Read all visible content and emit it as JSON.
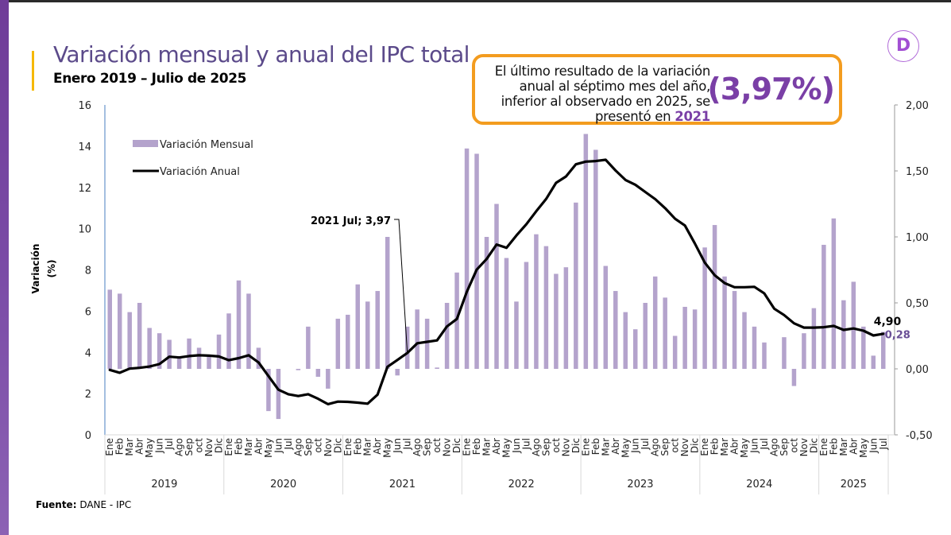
{
  "header": {
    "title": "Variación mensual y anual del IPC total",
    "subtitle": "Enero 2019 – Julio de 2025"
  },
  "callout": {
    "line1": "El último resultado de la variación",
    "line2": "anual al séptimo mes del año,",
    "line3": "inferior al observado en 2025, se",
    "line4_prefix": "presentó en ",
    "year": "2021",
    "value": "(3,97%)"
  },
  "logo": {
    "icon": "d-logo-icon",
    "glyph": "D"
  },
  "footer": {
    "source_label": "Fuente:",
    "source_value": " DANE - IPC"
  },
  "colors": {
    "bars": "#b4a3cc",
    "line": "#000000",
    "callout_border": "#f39c1f",
    "accent": "#7a3fa6",
    "title": "#5b4a8a"
  },
  "chart_data": {
    "type": "bar+line",
    "title": "Variación mensual y anual del IPC total",
    "ylabel": "Variación (%)",
    "y_left": {
      "min": 0,
      "max": 16,
      "ticks": [
        "0",
        "2",
        "4",
        "6",
        "8",
        "10",
        "12",
        "14",
        "16"
      ],
      "series": "Variación Anual"
    },
    "y_right": {
      "min": -0.5,
      "max": 2.0,
      "ticks": [
        "-0,50",
        "0,00",
        "0,50",
        "1,00",
        "1,50",
        "2,00"
      ],
      "series": "Variación Mensual"
    },
    "legend": {
      "position": "top-left",
      "items": [
        "Variación Mensual",
        "Variación Anual"
      ]
    },
    "month_labels": [
      "Ene",
      "Feb",
      "Mar",
      "Abr",
      "May",
      "Jun",
      "Jul",
      "Ago",
      "Sep",
      "oct",
      "Nov",
      "Dic"
    ],
    "years": [
      "2019",
      "2020",
      "2021",
      "2022",
      "2023",
      "2024",
      "2025"
    ],
    "months_in_last_year": 7,
    "series": [
      {
        "name": "Variación Mensual",
        "axis": "right",
        "type": "bar",
        "values": [
          0.6,
          0.57,
          0.43,
          0.5,
          0.31,
          0.27,
          0.22,
          0.09,
          0.23,
          0.16,
          0.1,
          0.26,
          0.42,
          0.67,
          0.57,
          0.16,
          -0.32,
          -0.38,
          0.0,
          -0.01,
          0.32,
          -0.06,
          -0.15,
          0.38,
          0.41,
          0.64,
          0.51,
          0.59,
          1.0,
          -0.05,
          0.32,
          0.45,
          0.38,
          0.01,
          0.5,
          0.73,
          1.67,
          1.63,
          1.0,
          1.25,
          0.84,
          0.51,
          0.81,
          1.02,
          0.93,
          0.72,
          0.77,
          1.26,
          1.78,
          1.66,
          0.78,
          0.59,
          0.43,
          0.3,
          0.5,
          0.7,
          0.54,
          0.25,
          0.47,
          0.45,
          0.92,
          1.09,
          0.7,
          0.59,
          0.43,
          0.32,
          0.2,
          0.0,
          0.24,
          -0.13,
          0.27,
          0.46,
          0.94,
          1.14,
          0.52,
          0.66,
          0.32,
          0.1,
          0.28
        ]
      },
      {
        "name": "Variación Anual",
        "axis": "left",
        "type": "line",
        "values": [
          3.15,
          3.01,
          3.21,
          3.25,
          3.31,
          3.43,
          3.79,
          3.75,
          3.82,
          3.86,
          3.84,
          3.8,
          3.62,
          3.72,
          3.86,
          3.51,
          2.85,
          2.19,
          1.97,
          1.88,
          1.97,
          1.75,
          1.49,
          1.61,
          1.6,
          1.56,
          1.51,
          1.95,
          3.3,
          3.63,
          3.97,
          4.44,
          4.51,
          4.58,
          5.26,
          5.62,
          6.94,
          8.01,
          8.53,
          9.23,
          9.07,
          9.67,
          10.21,
          10.84,
          11.44,
          12.22,
          12.53,
          13.12,
          13.25,
          13.28,
          13.34,
          12.82,
          12.36,
          12.13,
          11.78,
          11.43,
          10.99,
          10.48,
          10.15,
          9.28,
          8.35,
          7.74,
          7.36,
          7.16,
          7.16,
          7.18,
          6.86,
          6.12,
          5.81,
          5.41,
          5.2,
          5.2,
          5.22,
          5.28,
          5.09,
          5.16,
          5.05,
          4.82,
          4.9
        ]
      }
    ],
    "annotations": [
      {
        "text": "2021 Jul; 3,97",
        "target": {
          "year": "2021",
          "month": "Jul",
          "value": 3.97
        }
      },
      {
        "text": "4,90",
        "target": {
          "year": "2025",
          "month": "Jul",
          "series": "Variación Anual"
        }
      },
      {
        "text": "0,28",
        "target": {
          "year": "2025",
          "month": "Jul",
          "series": "Variación Mensual"
        }
      }
    ]
  }
}
